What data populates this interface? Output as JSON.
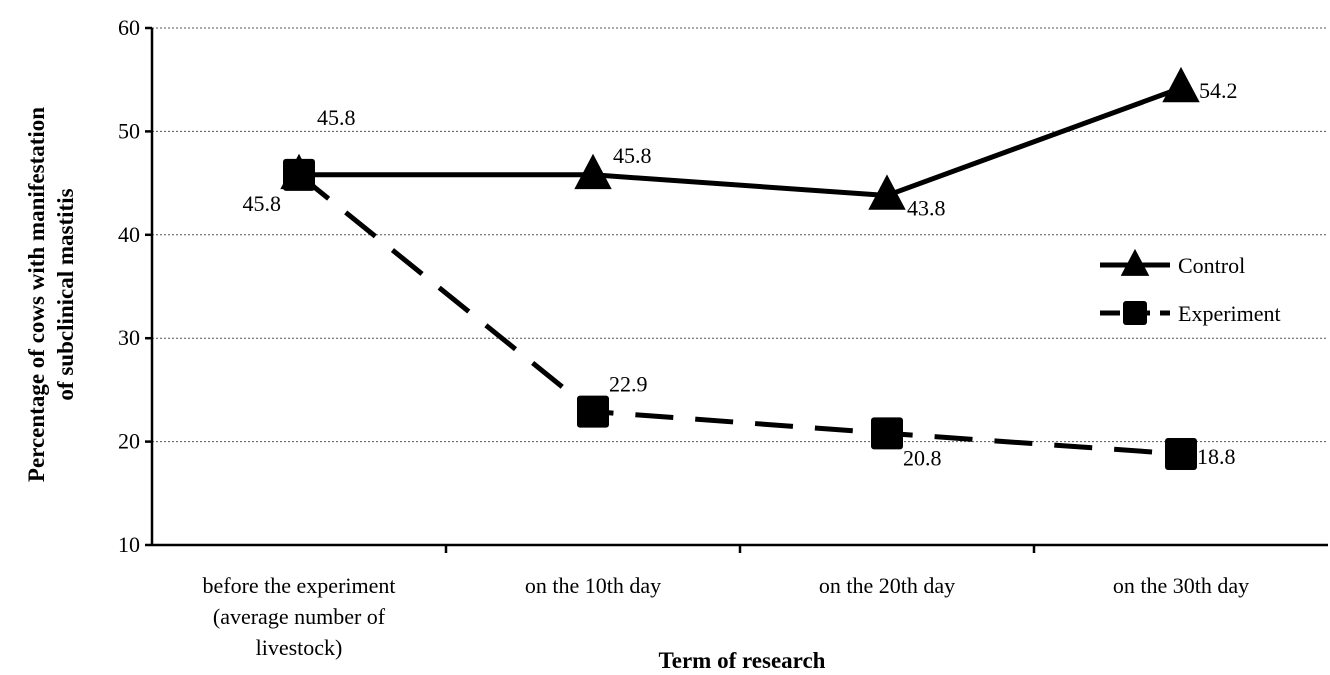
{
  "chart_data": {
    "type": "line",
    "categories": [
      [
        "before the experiment",
        "(average number of",
        "livestock)"
      ],
      [
        "on the 10th day"
      ],
      [
        "on the 20th day"
      ],
      [
        "on the 30th day"
      ]
    ],
    "series": [
      {
        "name": "Control",
        "values": [
          45.8,
          45.8,
          43.8,
          54.2
        ],
        "labels": [
          "45.8",
          "45.8",
          "43.8",
          "54.2"
        ],
        "marker": "triangle",
        "line": "solid"
      },
      {
        "name": "Experiment",
        "values": [
          45.8,
          22.9,
          20.8,
          18.8
        ],
        "labels": [
          "45.8",
          "22.9",
          "20.8",
          "18.8"
        ],
        "marker": "square",
        "line": "dashed"
      }
    ],
    "ylim": [
      10,
      60
    ],
    "yticks": [
      "10",
      "20",
      "30",
      "40",
      "50",
      "60"
    ],
    "ylabel": [
      "Percentage of cows with manifestation",
      "of subclinical mastitis"
    ],
    "xlabel": "Term of research",
    "grid": true,
    "legend_position": "right",
    "colors": {
      "line": "#000000",
      "grid": "#555555"
    }
  }
}
